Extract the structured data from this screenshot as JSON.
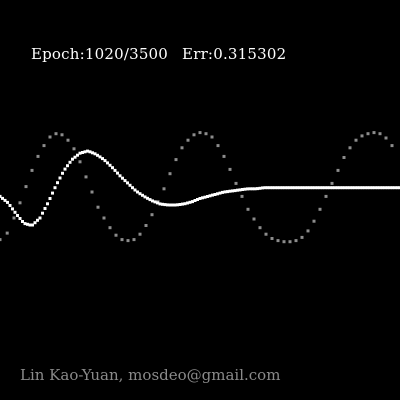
{
  "status": {
    "epoch_label": "Epoch:",
    "epoch_value": "1020/3500",
    "err_label": "Err:",
    "err_value": "0.315302"
  },
  "credit": "Lin Kao-Yuan, mosdeo@gmail.com",
  "colors": {
    "background": "#000000",
    "prediction": "#ffffff",
    "target": "#8c8c8c",
    "text": "#ffffff",
    "credit": "#8a8a8a"
  },
  "chart_data": {
    "type": "scatter",
    "xlim": [
      0,
      1
    ],
    "ylim": [
      -1,
      1
    ],
    "grid": false,
    "series": [
      {
        "role": "target",
        "color": "#8c8c8c",
        "x": [
          0.0,
          0.018,
          0.035,
          0.05,
          0.065,
          0.08,
          0.095,
          0.11,
          0.125,
          0.14,
          0.155,
          0.17,
          0.185,
          0.2,
          0.215,
          0.23,
          0.245,
          0.26,
          0.275,
          0.29,
          0.305,
          0.32,
          0.335,
          0.35,
          0.365,
          0.38,
          0.395,
          0.41,
          0.425,
          0.44,
          0.455,
          0.47,
          0.485,
          0.5,
          0.515,
          0.53,
          0.545,
          0.56,
          0.575,
          0.59,
          0.605,
          0.62,
          0.635,
          0.65,
          0.665,
          0.68,
          0.695,
          0.71,
          0.725,
          0.74,
          0.755,
          0.77,
          0.785,
          0.8,
          0.815,
          0.83,
          0.845,
          0.86,
          0.875,
          0.89,
          0.905,
          0.92,
          0.935,
          0.95,
          0.965,
          0.98
        ],
        "y": [
          -0.32,
          -0.26,
          -0.12,
          0.02,
          0.17,
          0.32,
          0.45,
          0.55,
          0.63,
          0.66,
          0.65,
          0.6,
          0.52,
          0.4,
          0.26,
          0.12,
          -0.02,
          -0.12,
          -0.21,
          -0.28,
          -0.32,
          -0.33,
          -0.32,
          -0.27,
          -0.19,
          -0.09,
          0.03,
          0.15,
          0.29,
          0.42,
          0.53,
          0.6,
          0.65,
          0.67,
          0.66,
          0.63,
          0.55,
          0.45,
          0.33,
          0.2,
          0.08,
          -0.04,
          -0.13,
          -0.21,
          -0.27,
          -0.31,
          -0.33,
          -0.34,
          -0.34,
          -0.33,
          -0.3,
          -0.24,
          -0.15,
          -0.04,
          0.08,
          0.2,
          0.32,
          0.44,
          0.53,
          0.6,
          0.64,
          0.66,
          0.67,
          0.66,
          0.62,
          0.55
        ]
      },
      {
        "role": "prediction",
        "color": "#ffffff",
        "x": [
          0.0,
          0.02,
          0.04,
          0.06,
          0.08,
          0.1,
          0.12,
          0.14,
          0.16,
          0.18,
          0.2,
          0.22,
          0.24,
          0.26,
          0.28,
          0.3,
          0.32,
          0.34,
          0.36,
          0.38,
          0.4,
          0.42,
          0.44,
          0.46,
          0.48,
          0.5,
          0.52,
          0.54,
          0.56,
          0.58,
          0.6,
          0.62,
          0.64,
          0.66,
          0.68,
          0.7,
          0.72,
          0.74,
          0.76,
          0.78,
          0.8,
          0.82,
          0.84,
          0.86,
          0.88,
          0.9,
          0.92,
          0.94,
          0.96,
          0.98,
          1.0
        ],
        "y": [
          0.08,
          0.02,
          -0.08,
          -0.17,
          -0.19,
          -0.12,
          0.02,
          0.18,
          0.32,
          0.42,
          0.48,
          0.5,
          0.47,
          0.42,
          0.35,
          0.27,
          0.2,
          0.13,
          0.08,
          0.04,
          0.01,
          0.0,
          0.0,
          0.01,
          0.03,
          0.06,
          0.08,
          0.1,
          0.12,
          0.13,
          0.14,
          0.15,
          0.15,
          0.16,
          0.16,
          0.16,
          0.16,
          0.16,
          0.16,
          0.16,
          0.16,
          0.16,
          0.16,
          0.16,
          0.16,
          0.16,
          0.16,
          0.16,
          0.16,
          0.16,
          0.16
        ]
      }
    ]
  }
}
